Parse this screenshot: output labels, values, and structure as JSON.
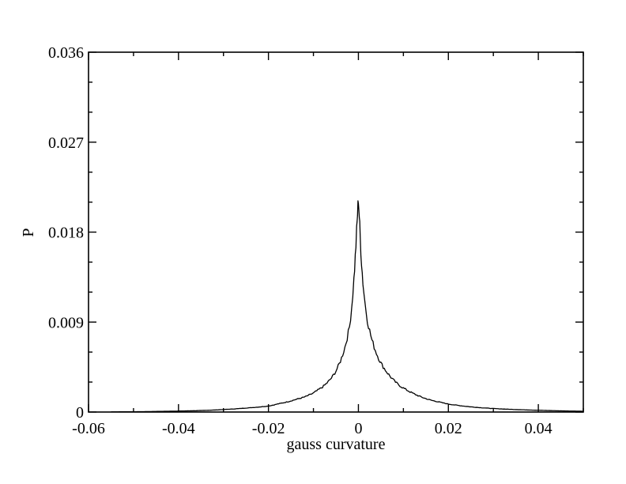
{
  "chart_data": {
    "type": "line",
    "title": "",
    "xlabel": "gauss curvature",
    "ylabel": "P",
    "xlim": [
      -0.06,
      0.05
    ],
    "ylim": [
      0,
      0.036
    ],
    "x_ticks": [
      "-0.06",
      "-0.04",
      "-0.02",
      "0",
      "0.02",
      "0.04"
    ],
    "x_tick_values": [
      -0.06,
      -0.04,
      -0.02,
      0,
      0.02,
      0.04
    ],
    "y_ticks": [
      "0",
      "0.009",
      "0.018",
      "0.027",
      "0.036"
    ],
    "y_tick_values": [
      0,
      0.009,
      0.018,
      0.027,
      0.036
    ],
    "grid": false,
    "legend": "none",
    "series": [
      {
        "color": "#000000",
        "x": [
          -0.055,
          -0.05,
          -0.045,
          -0.04,
          -0.035,
          -0.03,
          -0.025,
          -0.02,
          -0.018,
          -0.016,
          -0.014,
          -0.012,
          -0.01,
          -0.009,
          -0.008,
          -0.007,
          -0.006,
          -0.005,
          -0.004,
          -0.003,
          -0.002,
          -0.0015,
          -0.001,
          -0.0007,
          -0.0004,
          -0.0002,
          0,
          0.0002,
          0.0004,
          0.0007,
          0.001,
          0.0015,
          0.002,
          0.003,
          0.004,
          0.005,
          0.006,
          0.007,
          0.008,
          0.009,
          0.01,
          0.012,
          0.014,
          0.016,
          0.018,
          0.02,
          0.025,
          0.03,
          0.035,
          0.04,
          0.045,
          0.05
        ],
        "y": [
          2e-05,
          3e-05,
          6e-05,
          0.0001,
          0.00015,
          0.00025,
          0.0004,
          0.0006,
          0.0008,
          0.001,
          0.00125,
          0.0015,
          0.0019,
          0.0022,
          0.0025,
          0.0029,
          0.0034,
          0.0041,
          0.0051,
          0.0065,
          0.0085,
          0.0105,
          0.0133,
          0.0155,
          0.018,
          0.0198,
          0.0214,
          0.0196,
          0.0175,
          0.015,
          0.013,
          0.0108,
          0.0092,
          0.0072,
          0.0059,
          0.0049,
          0.0042,
          0.0036,
          0.0031,
          0.0027,
          0.0024,
          0.0019,
          0.0015,
          0.0012,
          0.001,
          0.0008,
          0.00052,
          0.00035,
          0.00025,
          0.00018,
          0.00012,
          8e-05
        ]
      }
    ]
  }
}
